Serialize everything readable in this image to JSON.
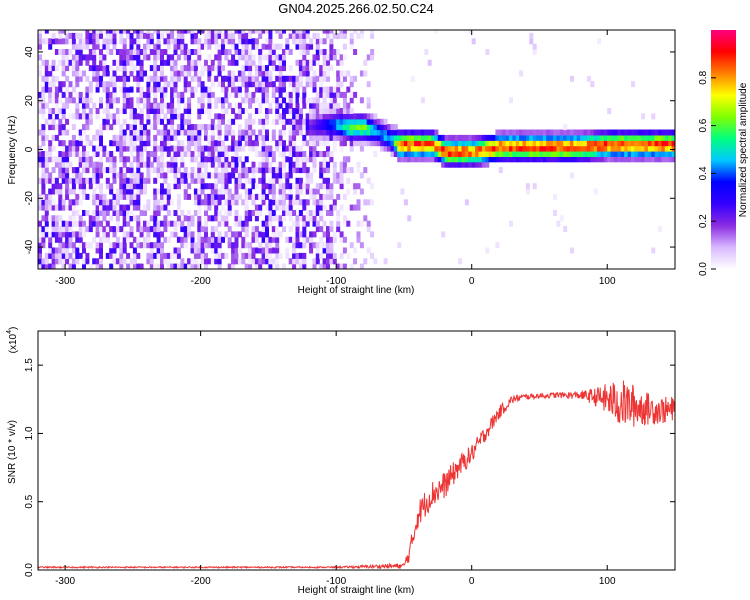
{
  "title": "GN04.2025.266.02.50.C24",
  "chart_data": [
    {
      "type": "heatmap",
      "xlabel": "Height of straight line (km)",
      "ylabel": "Frequency (Hz)",
      "xlim": [
        -320,
        150
      ],
      "ylim": [
        -49,
        49
      ],
      "xticks": [
        -300,
        -200,
        -100,
        0,
        100
      ],
      "yticks": [
        -40,
        -20,
        0,
        20,
        40
      ],
      "colorbar": {
        "label": "Normalized spectral amplitude",
        "range": [
          0,
          1
        ],
        "ticks": [
          "0.0",
          "0.2",
          "0.4",
          "0.6",
          "0.8"
        ],
        "tick_values": [
          0,
          0.2,
          0.4,
          0.6,
          0.8
        ],
        "stops": [
          "#ffffff",
          "#d8b8ff",
          "#8a2be2",
          "#3300ff",
          "#0000ff",
          "#00c8ff",
          "#00ff80",
          "#80ff00",
          "#ffff00",
          "#ff8000",
          "#ff0000",
          "#ff0080"
        ]
      },
      "noise_region_x": [
        -320,
        -70
      ],
      "ridge": {
        "x": [
          -120,
          -110,
          -100,
          -90,
          -80,
          -70,
          -60,
          -55,
          -50,
          -40,
          -30,
          -20,
          -10,
          0,
          10,
          20,
          40,
          60,
          80,
          100,
          120,
          150
        ],
        "frequency": [
          8,
          9,
          9,
          8,
          8,
          6,
          3,
          1,
          1,
          1,
          1,
          -2,
          -2,
          -2,
          -1,
          0,
          0,
          0,
          0,
          1,
          1,
          1
        ],
        "amplitude": [
          0.25,
          0.35,
          0.5,
          0.65,
          0.65,
          0.45,
          0.5,
          0.9,
          0.95,
          0.95,
          0.9,
          0.95,
          0.95,
          0.9,
          0.95,
          0.95,
          0.95,
          0.95,
          0.95,
          0.95,
          0.95,
          0.95
        ]
      }
    },
    {
      "type": "line",
      "xlabel": "Height of straight line (km)",
      "ylabel": "SNR (10 * v/v)",
      "y_multiplier": "(x10",
      "y_multiplier_exp": "4",
      "y_multiplier_close": ")",
      "xlim": [
        -320,
        150
      ],
      "ylim": [
        0,
        1.75
      ],
      "xticks": [
        -300,
        -200,
        -100,
        0,
        100
      ],
      "yticks": [
        "0.0",
        "0.5",
        "1.0",
        "1.5"
      ],
      "ytick_values": [
        0,
        0.5,
        1.0,
        1.5
      ],
      "color": "#ee3333",
      "envelope": {
        "x": [
          -320,
          -100,
          -50,
          -45,
          -40,
          -30,
          -20,
          -10,
          0,
          10,
          20,
          30,
          40,
          60,
          80,
          90,
          100,
          110,
          120,
          130,
          140,
          150
        ],
        "y": [
          0.02,
          0.02,
          0.03,
          0.15,
          0.4,
          0.55,
          0.62,
          0.75,
          0.85,
          1.0,
          1.15,
          1.25,
          1.27,
          1.28,
          1.28,
          1.27,
          1.25,
          1.22,
          1.2,
          1.18,
          1.17,
          1.17
        ],
        "noise": [
          0.005,
          0.005,
          0.02,
          0.08,
          0.1,
          0.1,
          0.1,
          0.08,
          0.07,
          0.06,
          0.05,
          0.03,
          0.02,
          0.02,
          0.03,
          0.06,
          0.12,
          0.18,
          0.16,
          0.12,
          0.1,
          0.1
        ]
      }
    }
  ]
}
